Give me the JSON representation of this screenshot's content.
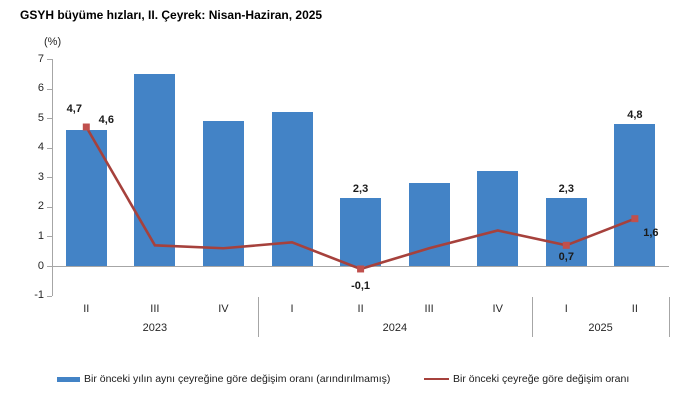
{
  "title": "GSYH büyüme hızları, II. Çeyrek: Nisan-Haziran, 2025",
  "unit_label": "(%)",
  "chart_data": {
    "type": "combo-bar-line",
    "title": "GSYH büyüme hızları, II. Çeyrek: Nisan-Haziran, 2025",
    "ylabel": "(%)",
    "xlabel": "",
    "ylim": [
      -1,
      7
    ],
    "y_ticks": [
      7,
      6,
      5,
      4,
      3,
      2,
      1,
      0,
      -1
    ],
    "grid": false,
    "legend_position": "bottom",
    "decimal_separator": ",",
    "categories": [
      "II",
      "III",
      "IV",
      "I",
      "II",
      "III",
      "IV",
      "I",
      "II"
    ],
    "category_groups": [
      {
        "year": "2023",
        "count": 3
      },
      {
        "year": "2024",
        "count": 4
      },
      {
        "year": "2025",
        "count": 2
      }
    ],
    "series": [
      {
        "name": "Bir önceki yılın aynı çeyreğine göre değişim oranı (arındırılmamış)",
        "type": "bar",
        "color": "#4383C6",
        "values": [
          4.6,
          6.5,
          4.9,
          5.2,
          2.3,
          2.8,
          3.2,
          2.3,
          4.8
        ],
        "labeled_points": [
          0,
          4,
          7,
          8
        ],
        "point_labels": [
          "4,6",
          "2,3",
          "2,3",
          "4,8"
        ]
      },
      {
        "name": "Bir önceki çeyreğe göre değişim oranı",
        "type": "line",
        "color": "#A6413C",
        "marker_color": "#C0504D",
        "values": [
          4.7,
          0.7,
          0.6,
          0.8,
          -0.1,
          0.6,
          1.2,
          0.7,
          1.6
        ],
        "labeled_points": [
          0,
          4,
          7,
          8
        ],
        "point_labels": [
          "4,7",
          "-0,1",
          "0,7",
          "1,6"
        ]
      }
    ]
  }
}
